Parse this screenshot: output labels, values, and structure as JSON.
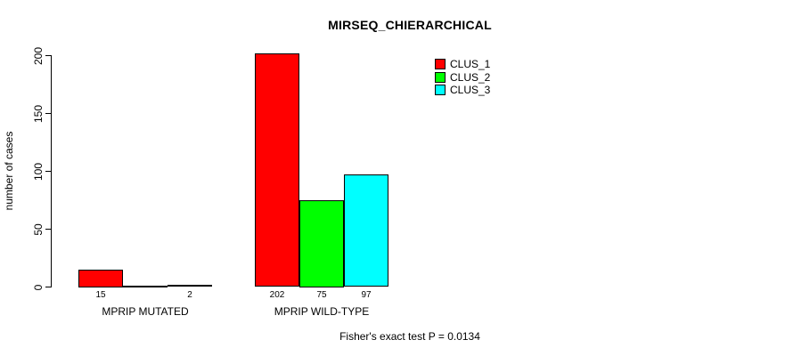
{
  "chart_data": {
    "type": "bar",
    "title": "MIRSEQ_CHIERARCHICAL",
    "ylabel": "number of cases",
    "xlabel": "",
    "ylim": [
      0,
      200
    ],
    "yticks": [
      0,
      50,
      100,
      150,
      200
    ],
    "categories": [
      "MPRIP MUTATED",
      "MPRIP WILD-TYPE"
    ],
    "series": [
      {
        "name": "CLUS_1",
        "color": "#FF0000",
        "values": [
          15,
          202
        ]
      },
      {
        "name": "CLUS_2",
        "color": "#00FF00",
        "values": [
          0,
          75
        ]
      },
      {
        "name": "CLUS_3",
        "color": "#00FFFF",
        "values": [
          2,
          97
        ]
      }
    ],
    "bar_value_labels": [
      "15",
      "",
      "2",
      "202",
      "75",
      "97"
    ],
    "legend_position": "top-right",
    "grid": false,
    "bar_border_color": "#000000",
    "axis_color": "#000000",
    "background": "#FFFFFF",
    "annotation": "Fisher's exact test P = 0.0134"
  }
}
